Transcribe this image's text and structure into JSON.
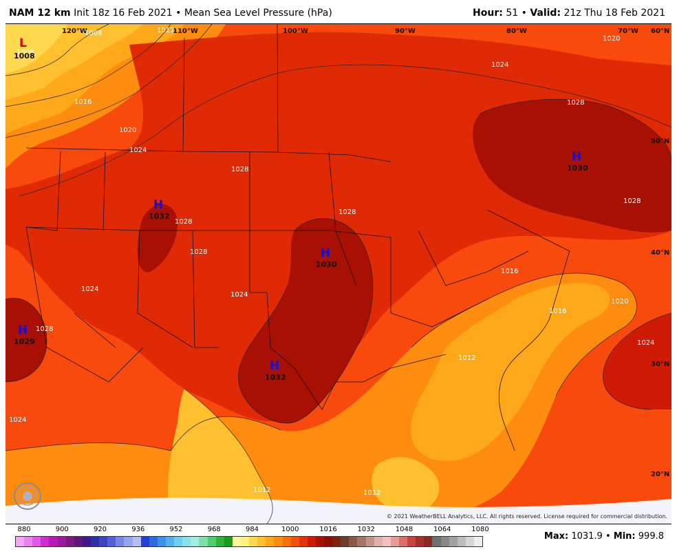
{
  "header": {
    "model": "NAM 12 km",
    "init": "Init 18z 16 Feb 2021",
    "sep": "•",
    "product": "Mean Sea Level Pressure (hPa)",
    "hour_label": "Hour:",
    "hour_value": "51",
    "valid_label": "Valid:",
    "valid_value": "21z Thu 18 Feb 2021"
  },
  "map": {
    "longitudes": [
      "120°W",
      "110°W",
      "100°W",
      "90°W",
      "80°W",
      "70°W"
    ],
    "latitudes": [
      "60°N",
      "50°N",
      "40°N",
      "30°N",
      "20°N"
    ],
    "contour_labels": [
      "1008",
      "1012",
      "1016",
      "1020",
      "1024",
      "1028",
      "1032"
    ],
    "highs": [
      {
        "symbol": "H",
        "value": "1032"
      },
      {
        "symbol": "H",
        "value": "1030"
      },
      {
        "symbol": "H",
        "value": "1032"
      },
      {
        "symbol": "H",
        "value": "1029"
      },
      {
        "symbol": "H",
        "value": "1030"
      }
    ],
    "lows": [
      {
        "symbol": "L",
        "value": "1008"
      }
    ]
  },
  "copyright": "© 2021 WeatherBELL Analytics, LLC. All rights reserved. License required for commercial distribution.",
  "logo_text": "WEATHERBELL",
  "legend": {
    "labels": [
      "880",
      "900",
      "920",
      "936",
      "952",
      "968",
      "984",
      "1000",
      "1016",
      "1032",
      "1048",
      "1064",
      "1080"
    ],
    "colors": [
      "#f4a6f4",
      "#ee7fee",
      "#e456e4",
      "#d22cd2",
      "#b81ab8",
      "#9b1a9b",
      "#7c1a80",
      "#5d1878",
      "#3f1a8c",
      "#2e2ea8",
      "#3d44c4",
      "#5560d6",
      "#7686e6",
      "#96a6ee",
      "#b4bef4",
      "#2040d8",
      "#2e6ae2",
      "#3a90ea",
      "#52b2ee",
      "#6cd0f0",
      "#86e2ec",
      "#a0eee0",
      "#7ee0a8",
      "#4ecc72",
      "#2eb43c",
      "#1a9c1a",
      "#f8f8a0",
      "#fef07a",
      "#fed84e",
      "#fec02e",
      "#fea81a",
      "#fe8c0e",
      "#fb6e0a",
      "#f55008",
      "#e63006",
      "#cf1a06",
      "#a81004",
      "#8c1006",
      "#7c2410",
      "#6e3c2a",
      "#8a5848",
      "#a47666",
      "#c09488",
      "#dcb2aa",
      "#f0c0bc",
      "#e89a96",
      "#dc6e6a",
      "#c84440",
      "#a8302c",
      "#8c2824",
      "#6e6e6e",
      "#888888",
      "#a2a2a2",
      "#bcbcbc",
      "#d6d6d6",
      "#eeeeee"
    ]
  },
  "stats": {
    "max_label": "Max:",
    "max_value": "1031.9",
    "min_label": "Min:",
    "min_value": "999.8"
  }
}
